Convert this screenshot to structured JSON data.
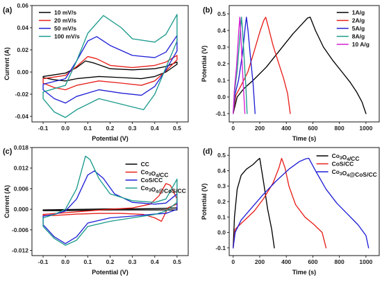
{
  "chart_data": [
    {
      "panel": "(a)",
      "type": "line",
      "title": "",
      "xlabel": "Potential (V)",
      "ylabel": "Current (A)",
      "xlim": [
        -0.15,
        0.55
      ],
      "ylim": [
        -0.045,
        0.06
      ],
      "xticks": [
        -0.1,
        0.0,
        0.1,
        0.2,
        0.3,
        0.4,
        0.5
      ],
      "yticks": [
        -0.04,
        -0.02,
        0.0,
        0.02,
        0.04,
        0.06
      ],
      "xtick_labels": [
        "-0.1",
        "0.0",
        "0.1",
        "0.2",
        "0.3",
        "0.4",
        "0.5"
      ],
      "ytick_labels": [
        "-0.04",
        "-0.02",
        "0.00",
        "0.02",
        "0.04",
        "0.06"
      ],
      "legend_position": "top-left",
      "series": [
        {
          "name": "10 mV/s",
          "color": "#000000",
          "x": [
            -0.1,
            0.0,
            0.05,
            0.09,
            0.13,
            0.2,
            0.3,
            0.4,
            0.45,
            0.5,
            0.5,
            0.45,
            0.4,
            0.34,
            0.25,
            0.15,
            0.05,
            0.0,
            -0.05,
            -0.1,
            -0.1
          ],
          "y": [
            -0.004,
            -0.001,
            0.004,
            0.01,
            0.008,
            0.003,
            0.002,
            0.003,
            0.005,
            0.009,
            0.007,
            0.0,
            -0.004,
            -0.006,
            -0.005,
            -0.004,
            -0.006,
            -0.008,
            -0.007,
            -0.005,
            -0.004
          ]
        },
        {
          "name": "20 mV/s",
          "color": "#e8201a",
          "x": [
            -0.1,
            0.0,
            0.05,
            0.1,
            0.14,
            0.2,
            0.3,
            0.4,
            0.45,
            0.5,
            0.5,
            0.45,
            0.4,
            0.34,
            0.25,
            0.15,
            0.05,
            0.0,
            -0.05,
            -0.1,
            -0.1
          ],
          "y": [
            -0.006,
            -0.003,
            0.005,
            0.014,
            0.012,
            0.006,
            0.004,
            0.006,
            0.009,
            0.015,
            0.011,
            0.001,
            -0.008,
            -0.012,
            -0.01,
            -0.008,
            -0.012,
            -0.016,
            -0.014,
            -0.01,
            -0.006
          ]
        },
        {
          "name": "50 mV/s",
          "color": "#1f1fd6",
          "x": [
            -0.1,
            0.0,
            0.05,
            0.1,
            0.14,
            0.2,
            0.3,
            0.4,
            0.45,
            0.5,
            0.5,
            0.45,
            0.4,
            0.34,
            0.25,
            0.15,
            0.05,
            0.0,
            -0.05,
            -0.1,
            -0.1
          ],
          "y": [
            -0.011,
            -0.006,
            0.01,
            0.028,
            0.032,
            0.024,
            0.015,
            0.013,
            0.018,
            0.033,
            0.019,
            0.002,
            -0.013,
            -0.021,
            -0.019,
            -0.016,
            -0.022,
            -0.028,
            -0.024,
            -0.016,
            -0.011
          ]
        },
        {
          "name": "100 mV/s",
          "color": "#1b9a8c",
          "x": [
            -0.1,
            0.0,
            0.05,
            0.1,
            0.17,
            0.25,
            0.3,
            0.4,
            0.45,
            0.5,
            0.5,
            0.45,
            0.4,
            0.35,
            0.25,
            0.15,
            0.05,
            0.0,
            -0.05,
            -0.1,
            -0.1
          ],
          "y": [
            -0.018,
            -0.012,
            0.01,
            0.035,
            0.051,
            0.04,
            0.03,
            0.027,
            0.034,
            0.052,
            0.028,
            0.004,
            -0.02,
            -0.034,
            -0.029,
            -0.024,
            -0.034,
            -0.041,
            -0.036,
            -0.024,
            -0.018
          ]
        }
      ]
    },
    {
      "panel": "(b)",
      "type": "line",
      "title": "",
      "xlabel": "Time (s)",
      "ylabel": "Potential (V)",
      "xlim": [
        -30,
        1100
      ],
      "ylim": [
        -0.15,
        0.55
      ],
      "xticks": [
        0,
        200,
        400,
        600,
        800,
        1000
      ],
      "yticks": [
        -0.1,
        0.0,
        0.1,
        0.2,
        0.3,
        0.4,
        0.5
      ],
      "xtick_labels": [
        "0",
        "200",
        "400",
        "600",
        "800",
        "1000"
      ],
      "ytick_labels": [
        "-0.1",
        "0.0",
        "0.1",
        "0.2",
        "0.3",
        "0.4",
        "0.5"
      ],
      "legend_position": "top-right",
      "series": [
        {
          "name": "1A/g",
          "color": "#000000",
          "x": [
            0,
            30,
            80,
            150,
            250,
            350,
            450,
            520,
            560,
            580,
            620,
            680,
            750,
            820,
            880,
            930,
            970,
            1000
          ],
          "y": [
            -0.1,
            0.0,
            0.05,
            0.1,
            0.18,
            0.28,
            0.38,
            0.44,
            0.475,
            0.48,
            0.4,
            0.3,
            0.22,
            0.15,
            0.09,
            0.03,
            -0.03,
            -0.1
          ]
        },
        {
          "name": "2A/g",
          "color": "#e8201a",
          "x": [
            0,
            20,
            60,
            110,
            160,
            200,
            230,
            245,
            265,
            300,
            340,
            380,
            410,
            430
          ],
          "y": [
            -0.1,
            0.01,
            0.07,
            0.15,
            0.28,
            0.39,
            0.46,
            0.48,
            0.42,
            0.31,
            0.21,
            0.11,
            0.02,
            -0.1
          ]
        },
        {
          "name": "5A/g",
          "color": "#1f1fd6",
          "x": [
            0,
            15,
            40,
            70,
            92,
            100,
            112,
            130,
            150,
            165
          ],
          "y": [
            -0.1,
            0.02,
            0.1,
            0.26,
            0.43,
            0.48,
            0.4,
            0.24,
            0.08,
            -0.1
          ]
        },
        {
          "name": "8A/g",
          "color": "#1b9a8c",
          "x": [
            0,
            12,
            30,
            52,
            62,
            70,
            82,
            95,
            105
          ],
          "y": [
            -0.1,
            0.04,
            0.16,
            0.38,
            0.48,
            0.41,
            0.24,
            0.07,
            -0.1
          ]
        },
        {
          "name": "10 A/g",
          "color": "#d21fd2",
          "x": [
            0,
            10,
            25,
            42,
            50,
            56,
            66,
            78,
            88
          ],
          "y": [
            -0.1,
            0.05,
            0.18,
            0.4,
            0.48,
            0.4,
            0.22,
            0.05,
            -0.1
          ]
        }
      ]
    },
    {
      "panel": "(c)",
      "type": "line",
      "title": "",
      "xlabel": "Potential (V)",
      "ylabel": "Current (A)",
      "xlim": [
        -0.15,
        0.55
      ],
      "ylim": [
        -0.0135,
        0.018
      ],
      "xticks": [
        -0.1,
        0.0,
        0.1,
        0.2,
        0.3,
        0.4,
        0.5
      ],
      "yticks": [
        -0.012,
        -0.006,
        0.0,
        0.006,
        0.012,
        0.018
      ],
      "xtick_labels": [
        "-0.1",
        "0.0",
        "0.1",
        "0.2",
        "0.3",
        "0.4",
        "0.5"
      ],
      "ytick_labels": [
        "-0.012",
        "-0.006",
        "0.000",
        "0.006",
        "0.012",
        "0.018"
      ],
      "legend_position": "top-right",
      "series": [
        {
          "name": "CC",
          "color": "#000000",
          "x": [
            -0.1,
            0.0,
            0.1,
            0.2,
            0.3,
            0.4,
            0.5,
            0.5,
            0.4,
            0.3,
            0.2,
            0.1,
            0.0,
            -0.1,
            -0.1
          ],
          "y": [
            -0.0002,
            -0.0001,
            0.0,
            0.0001,
            0.0001,
            0.0002,
            0.0004,
            -0.0002,
            -0.0002,
            -0.0002,
            -0.0002,
            -0.0003,
            -0.0004,
            -0.0004,
            -0.0002
          ]
        },
        {
          "name": "Co₃O₄/CC",
          "color": "#e8201a",
          "x": [
            -0.1,
            0.0,
            0.1,
            0.2,
            0.3,
            0.38,
            0.42,
            0.45,
            0.47,
            0.5,
            0.5,
            0.46,
            0.43,
            0.4,
            0.35,
            0.25,
            0.15,
            0.05,
            0.0,
            -0.05,
            -0.1,
            -0.1
          ],
          "y": [
            -0.0015,
            -0.001,
            -0.0005,
            0.0,
            0.0004,
            0.0015,
            0.004,
            0.0075,
            0.007,
            0.003,
            0.0015,
            0.0005,
            -0.0035,
            -0.0025,
            -0.0015,
            -0.0012,
            -0.0012,
            -0.0014,
            -0.0016,
            -0.0018,
            -0.0018,
            -0.0015
          ]
        },
        {
          "name": "CoS/CC",
          "color": "#1f1fd6",
          "x": [
            -0.1,
            -0.05,
            0.0,
            0.05,
            0.1,
            0.13,
            0.17,
            0.22,
            0.3,
            0.4,
            0.45,
            0.5,
            0.5,
            0.45,
            0.4,
            0.3,
            0.2,
            0.1,
            0.05,
            0.0,
            -0.05,
            -0.1,
            -0.1
          ],
          "y": [
            -0.002,
            -0.0015,
            -0.0005,
            0.003,
            0.01,
            0.0112,
            0.009,
            0.0045,
            0.002,
            0.0015,
            0.0018,
            0.0045,
            0.0,
            -0.0012,
            -0.0014,
            -0.002,
            -0.0025,
            -0.004,
            -0.008,
            -0.01,
            -0.008,
            -0.0045,
            -0.002
          ]
        },
        {
          "name": "Co₃O₄@CoS/CC",
          "color": "#1b9a8c",
          "x": [
            -0.1,
            -0.05,
            0.0,
            0.05,
            0.09,
            0.11,
            0.15,
            0.2,
            0.3,
            0.4,
            0.45,
            0.5,
            0.5,
            0.45,
            0.4,
            0.3,
            0.2,
            0.1,
            0.05,
            0.0,
            -0.05,
            -0.1,
            -0.1
          ],
          "y": [
            -0.0025,
            -0.0015,
            0.0,
            0.006,
            0.0155,
            0.0145,
            0.009,
            0.0045,
            0.0025,
            0.002,
            0.003,
            0.0088,
            0.002,
            -0.0005,
            -0.0015,
            -0.0025,
            -0.0035,
            -0.005,
            -0.009,
            -0.0105,
            -0.0085,
            -0.005,
            -0.0025
          ]
        }
      ]
    },
    {
      "panel": "(d)",
      "type": "line",
      "title": "",
      "xlabel": "Time (s)",
      "ylabel": "Potential (V)",
      "xlim": [
        -30,
        1100
      ],
      "ylim": [
        -0.15,
        0.55
      ],
      "xticks": [
        0,
        200,
        400,
        600,
        800,
        1000
      ],
      "yticks": [
        -0.1,
        0.0,
        0.1,
        0.2,
        0.3,
        0.4,
        0.5
      ],
      "xtick_labels": [
        "0",
        "200",
        "400",
        "600",
        "800",
        "1000"
      ],
      "ytick_labels": [
        "-0.1",
        "0.0",
        "0.1",
        "0.2",
        "0.3",
        "0.4",
        "0.5"
      ],
      "legend_position": "top-right",
      "series": [
        {
          "name": "Co₃O₄/CC",
          "color": "#000000",
          "x": [
            0,
            10,
            30,
            60,
            100,
            150,
            185,
            200,
            230,
            260,
            290,
            310
          ],
          "y": [
            -0.1,
            0.1,
            0.28,
            0.37,
            0.41,
            0.44,
            0.47,
            0.48,
            0.32,
            0.15,
            0.02,
            -0.1
          ]
        },
        {
          "name": "CoS/CC",
          "color": "#e8201a",
          "x": [
            0,
            15,
            50,
            100,
            160,
            230,
            300,
            345,
            365,
            390,
            420,
            470,
            540,
            610,
            670,
            700
          ],
          "y": [
            -0.1,
            0.02,
            0.05,
            0.09,
            0.14,
            0.22,
            0.32,
            0.42,
            0.48,
            0.42,
            0.3,
            0.18,
            0.1,
            0.05,
            0.0,
            -0.1
          ]
        },
        {
          "name": "Co₃O₄@CoS/CC",
          "color": "#1f1fd6",
          "x": [
            0,
            15,
            60,
            130,
            220,
            320,
            420,
            500,
            550,
            570,
            620,
            700,
            780,
            860,
            940,
            1000,
            1020
          ],
          "y": [
            -0.1,
            0.0,
            0.08,
            0.15,
            0.24,
            0.33,
            0.41,
            0.46,
            0.478,
            0.48,
            0.4,
            0.28,
            0.19,
            0.12,
            0.05,
            -0.02,
            -0.1
          ]
        }
      ]
    }
  ]
}
